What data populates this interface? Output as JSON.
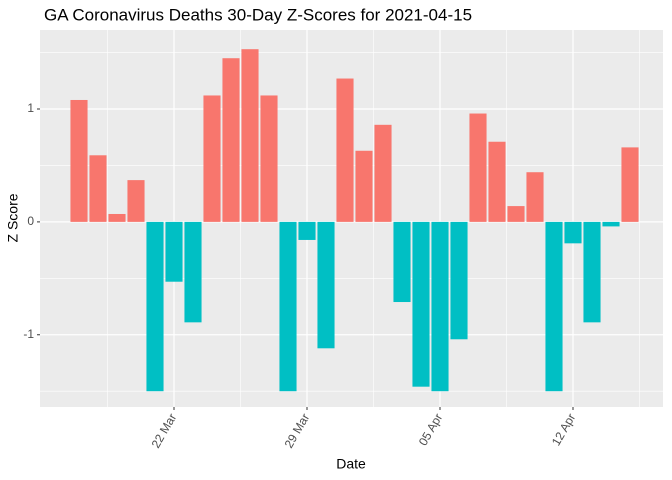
{
  "chart_data": {
    "type": "bar",
    "title": "GA Coronavirus Deaths 30-Day Z-Scores for 2021-04-15",
    "x_label": "Date",
    "y_label": "Z Score",
    "categories": [
      null,
      null,
      null,
      null,
      null,
      "22 Mar",
      null,
      null,
      null,
      null,
      null,
      null,
      "29 Mar",
      null,
      null,
      null,
      null,
      null,
      null,
      "05 Apr",
      null,
      null,
      null,
      null,
      null,
      null,
      "12 Apr",
      null,
      null,
      null
    ],
    "values": [
      1.08,
      0.59,
      0.07,
      0.37,
      -1.5,
      -0.53,
      -0.89,
      1.12,
      1.45,
      1.53,
      1.12,
      -1.5,
      -0.16,
      -1.12,
      1.27,
      0.63,
      0.86,
      -0.71,
      -1.46,
      -1.5,
      -1.04,
      0.96,
      0.71,
      0.14,
      0.44,
      -1.5,
      -0.19,
      -0.89,
      -0.04,
      0.66
    ],
    "positive_color": "#F8766D",
    "negative_color": "#00BFC4",
    "ylim": [
      -1.64,
      1.7
    ],
    "yticks": [
      -1,
      0,
      1
    ],
    "grid": true
  }
}
